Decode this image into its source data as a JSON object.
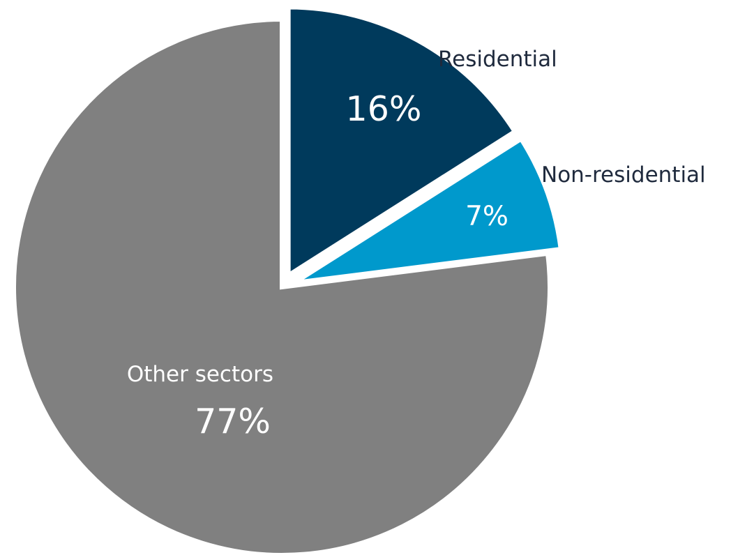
{
  "chart_data": {
    "type": "pie",
    "title": "",
    "slices": [
      {
        "name": "Residential",
        "value": 16,
        "value_label": "16%",
        "color": "#003a5c",
        "exploded": true,
        "name_color": "#1f2a3d",
        "value_color": "#ffffff"
      },
      {
        "name": "Non-residential",
        "value": 7,
        "value_label": "7%",
        "color": "#0099cc",
        "exploded": true,
        "name_color": "#1f2a3d",
        "value_color": "#ffffff"
      },
      {
        "name": "Other sectors",
        "value": 77,
        "value_label": "77%",
        "color": "#808080",
        "exploded": false,
        "name_color": "#ffffff",
        "value_color": "#ffffff"
      }
    ],
    "start_angle": "12 o'clock",
    "direction": "clockwise",
    "legend": "none"
  }
}
